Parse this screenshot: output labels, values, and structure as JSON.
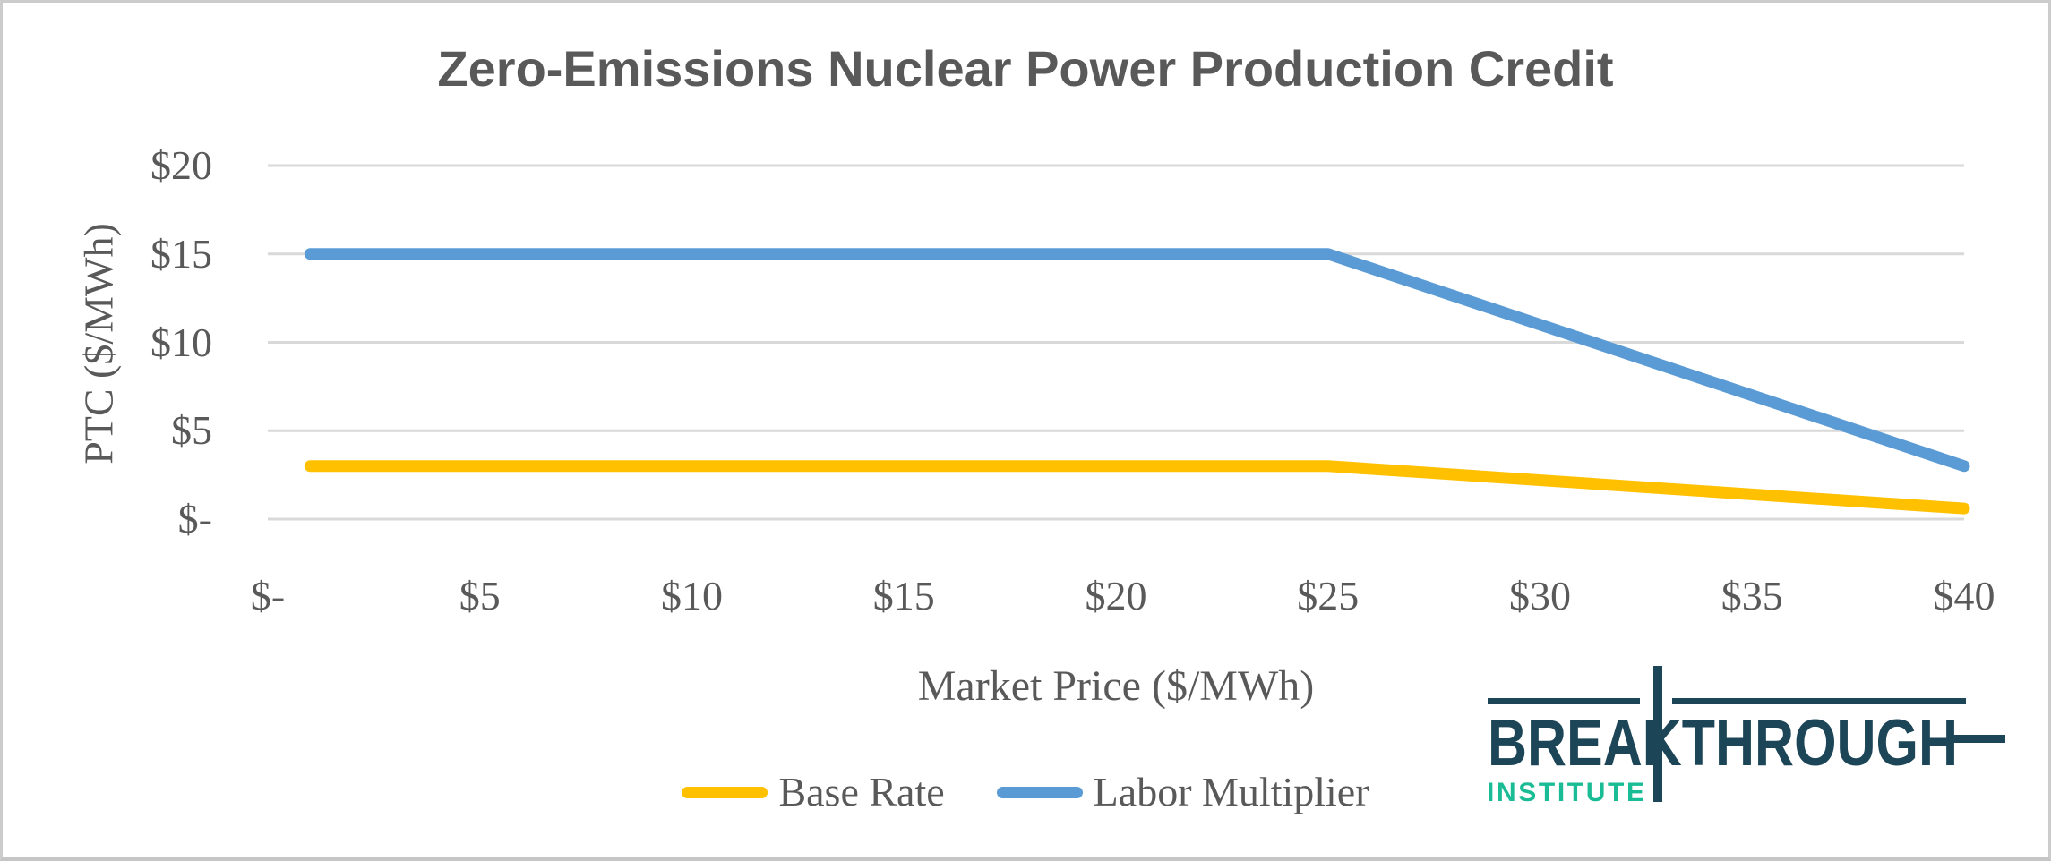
{
  "title": "Zero-Emissions Nuclear Power Production Credit",
  "colors": {
    "base_rate": "#FFC000",
    "labor_multiplier": "#5B9BD5",
    "gridline": "#D9D9D9",
    "text": "#595959",
    "logo_navy": "#1C4657",
    "logo_teal": "#1ABC96"
  },
  "chart_data": {
    "type": "line",
    "title": "Zero-Emissions Nuclear Power Production Credit",
    "xlabel": "Market Price ($/MWh)",
    "ylabel": "PTC ($/MWh)",
    "xlim": [
      0,
      40
    ],
    "ylim": [
      0,
      20
    ],
    "grid": "horizontal",
    "legend_position": "bottom",
    "x_ticks": [
      {
        "value": 0,
        "label": "$-"
      },
      {
        "value": 5,
        "label": "$5"
      },
      {
        "value": 10,
        "label": "$10"
      },
      {
        "value": 15,
        "label": "$15"
      },
      {
        "value": 20,
        "label": "$20"
      },
      {
        "value": 25,
        "label": "$25"
      },
      {
        "value": 30,
        "label": "$30"
      },
      {
        "value": 35,
        "label": "$35"
      },
      {
        "value": 40,
        "label": "$40"
      }
    ],
    "y_ticks": [
      {
        "value": 0,
        "label": "$-"
      },
      {
        "value": 5,
        "label": "$5"
      },
      {
        "value": 10,
        "label": "$10"
      },
      {
        "value": 15,
        "label": "$15"
      },
      {
        "value": 20,
        "label": "$20"
      }
    ],
    "series": [
      {
        "name": "Base Rate",
        "color": "#FFC000",
        "points": [
          [
            1,
            3
          ],
          [
            25,
            3
          ],
          [
            40,
            0.6
          ]
        ]
      },
      {
        "name": "Labor Multiplier",
        "color": "#5B9BD5",
        "points": [
          [
            1,
            15
          ],
          [
            25,
            15
          ],
          [
            40,
            3
          ]
        ]
      }
    ]
  },
  "legend": {
    "items": [
      {
        "label": "Base Rate",
        "color": "#FFC000"
      },
      {
        "label": "Labor Multiplier",
        "color": "#5B9BD5"
      }
    ]
  },
  "logo": {
    "line1": "BREAKTHROUGH",
    "line2": "INSTITUTE"
  }
}
